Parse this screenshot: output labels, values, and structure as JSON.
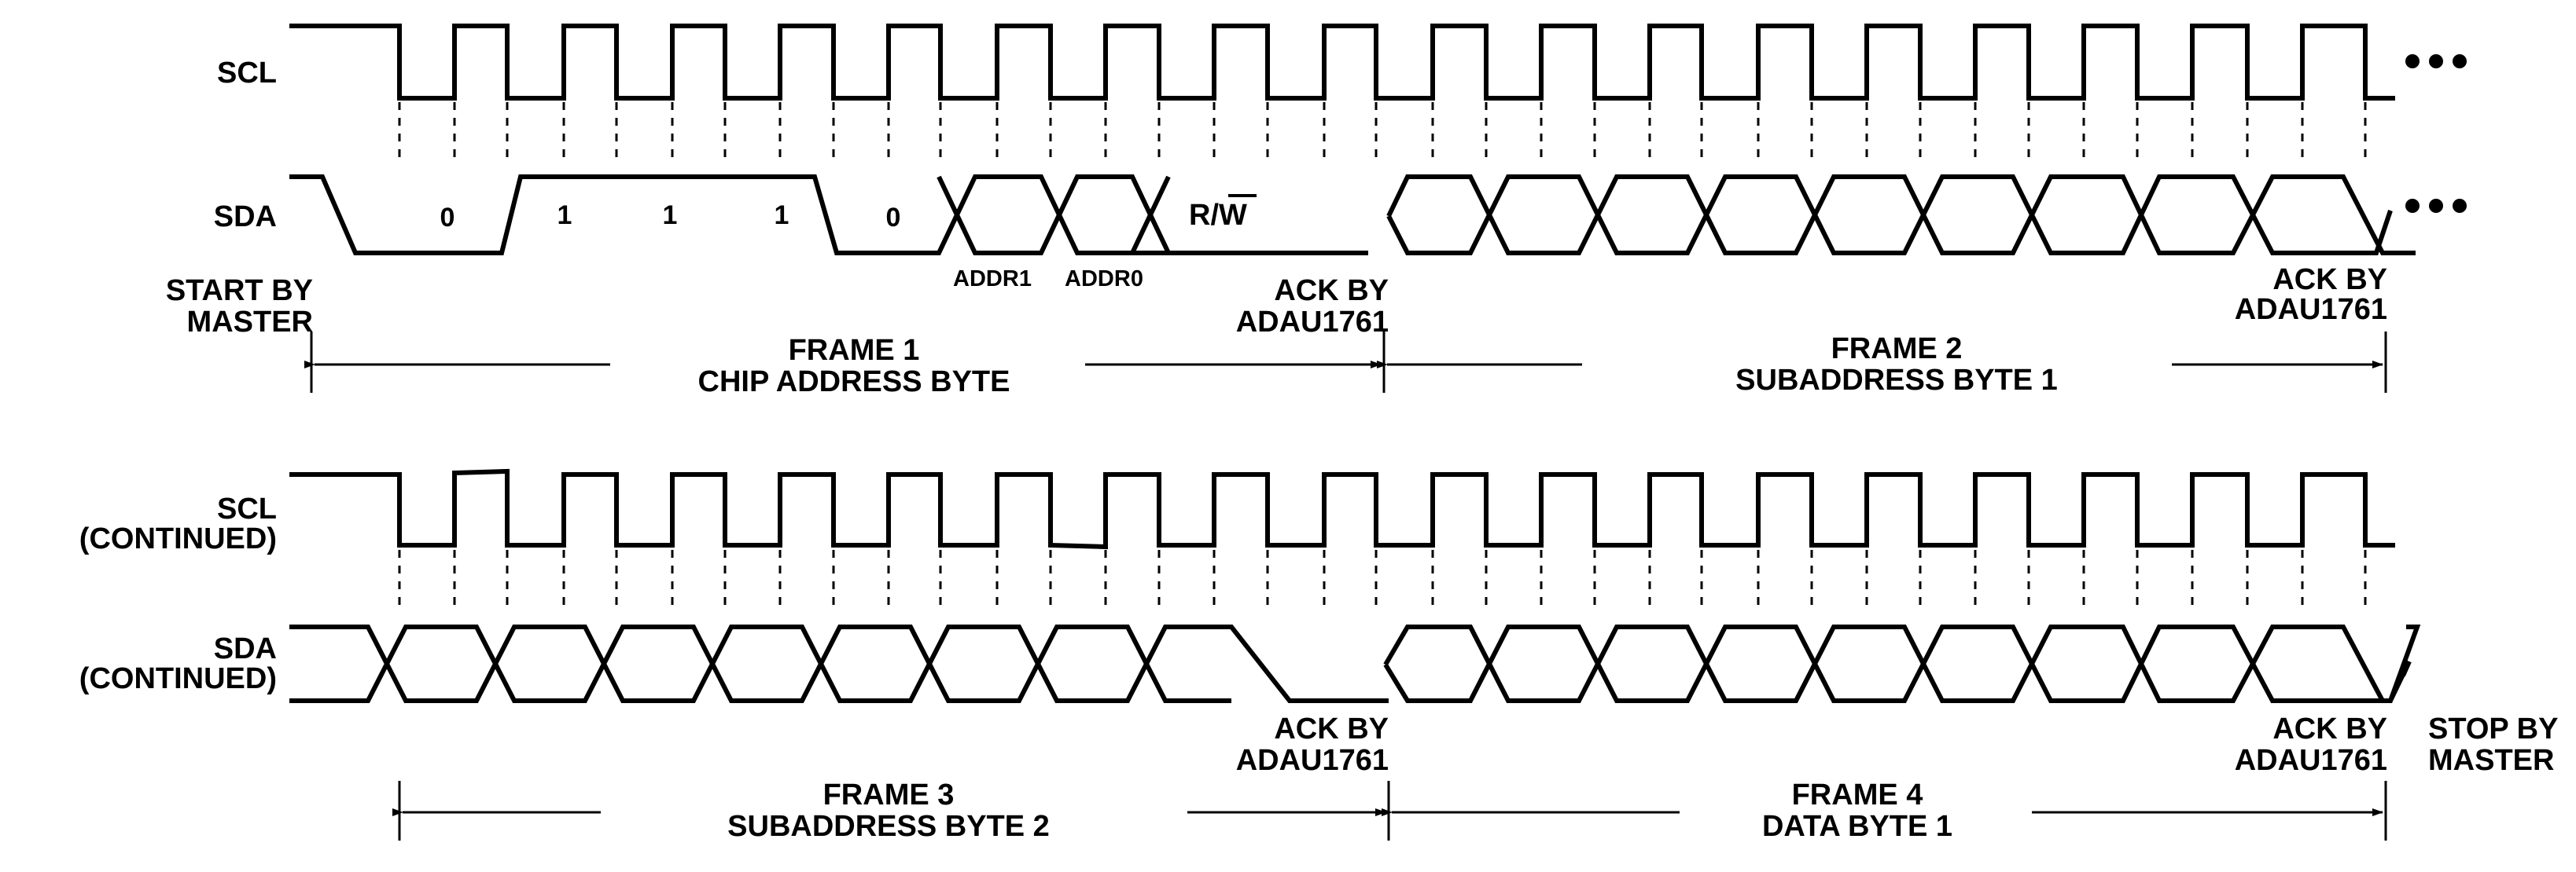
{
  "labels": {
    "scl": "SCL",
    "sda": "SDA",
    "scl_cont": [
      "SCL",
      "(CONTINUED)"
    ],
    "sda_cont": [
      "SDA",
      "(CONTINUED)"
    ],
    "start": [
      "START BY",
      "MASTER"
    ],
    "stop": [
      "STOP BY",
      "MASTER"
    ],
    "ack": [
      "ACK BY",
      "ADAU1761"
    ]
  },
  "frame1": {
    "title": "FRAME 1",
    "subtitle": "CHIP ADDRESS BYTE",
    "bits": [
      "0",
      "1",
      "1",
      "1",
      "0"
    ],
    "addr1": "ADDR1",
    "addr0": "ADDR0",
    "rw": "R/W"
  },
  "frame2": {
    "title": "FRAME 2",
    "subtitle": "SUBADDRESS BYTE 1"
  },
  "frame3": {
    "title": "FRAME 3",
    "subtitle": "SUBADDRESS BYTE 2"
  },
  "frame4": {
    "title": "FRAME 4",
    "subtitle": "DATA BYTE 1"
  },
  "colors": {
    "line": "#000000",
    "background": "#ffffff"
  }
}
